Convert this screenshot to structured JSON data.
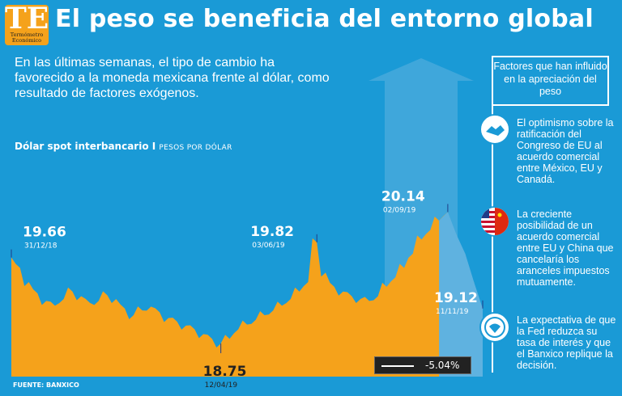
{
  "logo": {
    "letters": "TE",
    "name_line1": "Termómetro",
    "name_line2": "Económico"
  },
  "title": "El peso se beneficia del entorno global",
  "subtitle": "En las últimas semanas, el tipo de cambio ha favorecido a la moneda mexicana frente al dólar, como resultado de factores exógenos.",
  "chart_label": {
    "main": "Dólar spot interbancario I",
    "units": "PESOS POR DÓLAR"
  },
  "source": "FUENTE: BANXICO",
  "change_badge": "-5.04%",
  "factors": {
    "header": "Factores que han influido en la apreciación del peso",
    "items": [
      {
        "icon": "handshake-icon",
        "text": "El optimismo sobre la ratificación del Congreso de EU al acuerdo comercial entre México, EU y Canadá."
      },
      {
        "icon": "us-china-flags-icon",
        "text": "La creciente posibilidad de un acuerdo comercial entre EU y China que cancelaría los aranceles impuestos mutuamente."
      },
      {
        "icon": "federal-reserve-seal-icon",
        "text": "La expectativa de que la Fed reduzca su tasa de interés y que el Banxico replique la decisión."
      }
    ]
  },
  "colors": {
    "background": "#1a9ad6",
    "accent": "#f5a21b",
    "highlight": "#5fb2e0"
  },
  "chart_data": {
    "type": "area",
    "title": "Dólar spot interbancario",
    "ylabel": "Pesos por dólar",
    "ylim": [
      18.4,
      20.4
    ],
    "x": [
      0,
      4,
      8,
      12,
      16,
      20,
      24,
      28,
      32,
      36,
      40,
      44,
      48,
      52,
      56,
      60,
      64,
      68,
      72,
      76,
      80,
      84,
      88,
      92,
      96,
      100,
      104,
      108,
      112,
      116,
      120,
      124,
      128,
      132,
      136,
      140,
      144,
      148,
      152,
      156,
      160,
      164,
      168,
      172,
      176,
      180,
      184,
      188,
      192,
      196,
      200,
      204,
      208,
      212,
      216
    ],
    "values": [
      19.66,
      19.55,
      19.4,
      19.28,
      19.2,
      19.15,
      19.22,
      19.3,
      19.25,
      19.18,
      19.2,
      19.26,
      19.22,
      19.12,
      19.05,
      19.1,
      19.14,
      19.08,
      19.02,
      18.98,
      18.94,
      18.9,
      18.85,
      18.8,
      18.75,
      18.8,
      18.9,
      18.95,
      19.0,
      19.05,
      19.1,
      19.15,
      19.22,
      19.3,
      19.4,
      19.82,
      19.5,
      19.35,
      19.3,
      19.25,
      19.22,
      19.2,
      19.25,
      19.35,
      19.45,
      19.55,
      19.7,
      19.85,
      19.95,
      20.05,
      20.14,
      19.9,
      19.7,
      19.4,
      19.12
    ],
    "annotations": [
      {
        "label": "19.66",
        "date": "31/12/18",
        "index": 0
      },
      {
        "label": "18.75",
        "date": "12/04/19",
        "index": 24
      },
      {
        "label": "19.82",
        "date": "03/06/19",
        "index": 35
      },
      {
        "label": "20.14",
        "date": "02/09/19",
        "index": 50
      },
      {
        "label": "19.12",
        "date": "11/11/19",
        "index": 54
      }
    ],
    "highlight_start_index": 49
  }
}
